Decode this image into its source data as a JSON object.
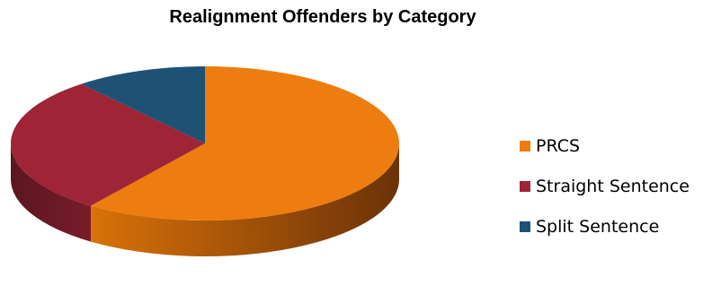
{
  "chart_data": {
    "type": "pie",
    "title": "Realignment Offenders by Category",
    "categories": [
      "PRCS",
      "Straight Sentence",
      "Split Sentence"
    ],
    "values": [
      60,
      29,
      11
    ],
    "colors": [
      "#ED7D0E",
      "#9E2436",
      "#1D5275"
    ],
    "legend_position": "right",
    "style": "3d"
  }
}
